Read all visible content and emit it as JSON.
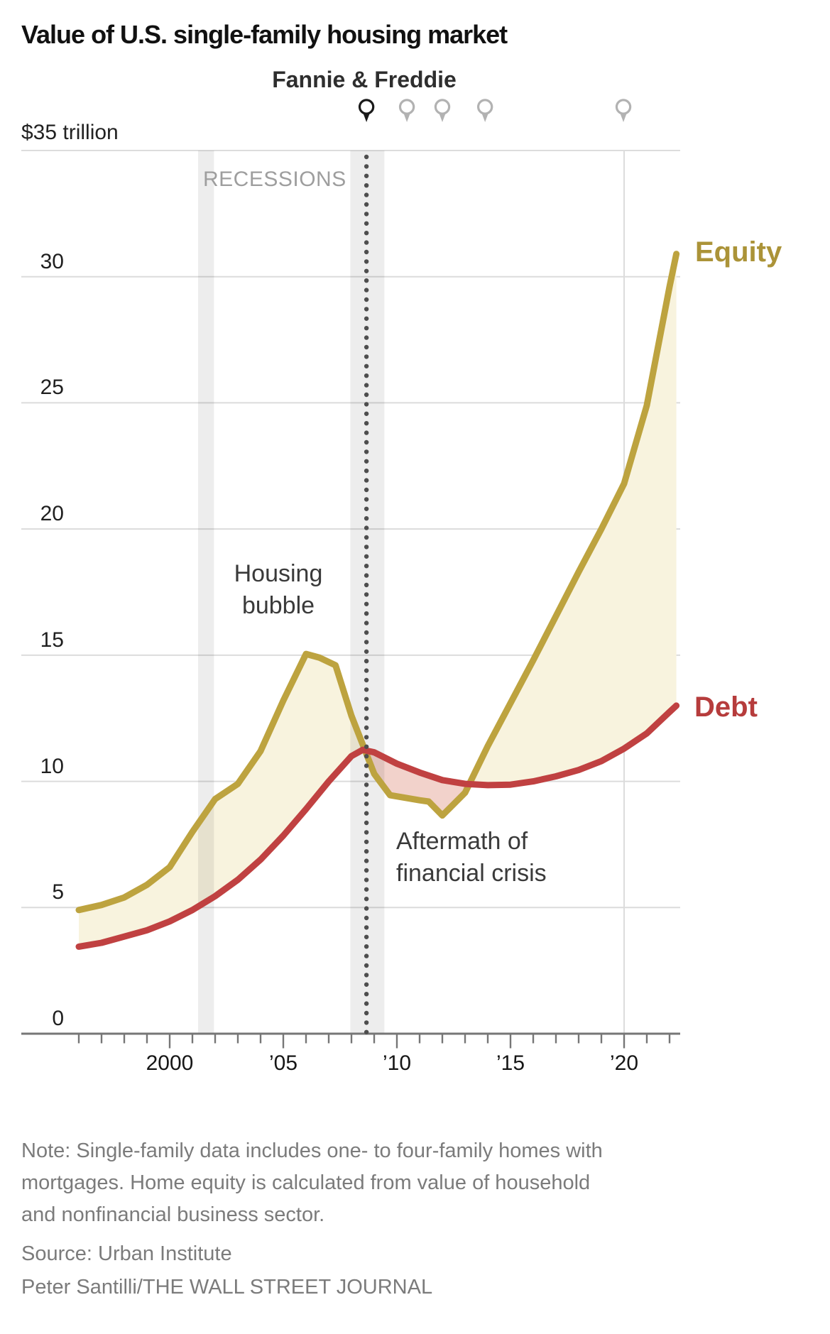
{
  "header": {
    "title": "Value of U.S. single-family housing market"
  },
  "chart": {
    "event_label": "Fannie & Freddie",
    "recessions_label": "RECESSIONS",
    "annotations": {
      "housing_bubble_line1": "Housing",
      "housing_bubble_line2": "bubble",
      "aftermath_line1": "Aftermath of",
      "aftermath_line2": "financial crisis"
    }
  },
  "chart_data": {
    "type": "line",
    "title": "Value of U.S. single-family housing market",
    "unit": "trillion USD",
    "legend_position": "right-of-line-ends",
    "grid": "horizontal",
    "y_axis": {
      "top_label": "$35 trillion",
      "ylim": [
        0,
        35
      ],
      "gridline_values": [
        35,
        30,
        25,
        20,
        15,
        10,
        5
      ],
      "tick_labels": [
        {
          "value": 30,
          "label": "30"
        },
        {
          "value": 25,
          "label": "25"
        },
        {
          "value": 20,
          "label": "20"
        },
        {
          "value": 15,
          "label": "15"
        },
        {
          "value": 10,
          "label": "10"
        },
        {
          "value": 5,
          "label": "5"
        },
        {
          "value": 0,
          "label": "0"
        }
      ]
    },
    "x_axis": {
      "xlim": [
        1995.95,
        2022.45
      ],
      "major_ticks": [
        {
          "x": 2000,
          "label": "2000"
        },
        {
          "x": 2005,
          "label": "’05"
        },
        {
          "x": 2010,
          "label": "’10"
        },
        {
          "x": 2015,
          "label": "’15"
        },
        {
          "x": 2020,
          "label": "’20"
        }
      ],
      "minor_tick_years": [
        1996,
        2022
      ],
      "year_gridlines": [
        2020
      ]
    },
    "recession_bands": [
      [
        2001.25,
        2001.95
      ],
      [
        2007.95,
        2009.45
      ]
    ],
    "event_line_x": 2008.66,
    "pins": {
      "event_pin_x": 2008.66,
      "secondary_pins_x": [
        2010.44,
        2012.0,
        2013.88,
        2019.97
      ]
    },
    "series": [
      {
        "name": "Equity",
        "color": "#bda33f",
        "label_color": "#ab9338",
        "points": [
          [
            1996,
            4.9
          ],
          [
            1997,
            5.1
          ],
          [
            1998,
            5.4
          ],
          [
            1999,
            5.9
          ],
          [
            2000,
            6.6
          ],
          [
            2001,
            8.0
          ],
          [
            2002,
            9.3
          ],
          [
            2003,
            9.9
          ],
          [
            2004,
            11.2
          ],
          [
            2005,
            13.2
          ],
          [
            2006,
            15.05
          ],
          [
            2006.6,
            14.9
          ],
          [
            2007.3,
            14.6
          ],
          [
            2008,
            12.6
          ],
          [
            2009,
            10.3
          ],
          [
            2009.7,
            9.45
          ],
          [
            2011,
            9.25
          ],
          [
            2011.4,
            9.2
          ],
          [
            2012,
            8.65
          ],
          [
            2013,
            9.55
          ],
          [
            2014,
            11.4
          ],
          [
            2015,
            13.1
          ],
          [
            2016,
            14.8
          ],
          [
            2017,
            16.55
          ],
          [
            2018,
            18.3
          ],
          [
            2019,
            20.0
          ],
          [
            2020,
            21.8
          ],
          [
            2021,
            24.9
          ],
          [
            2022,
            29.6
          ],
          [
            2022.3,
            30.9
          ]
        ]
      },
      {
        "name": "Debt",
        "color": "#c04141",
        "label_color": "#b63c3c",
        "points": [
          [
            1996,
            3.45
          ],
          [
            1997,
            3.6
          ],
          [
            1998,
            3.85
          ],
          [
            1999,
            4.1
          ],
          [
            2000,
            4.45
          ],
          [
            2001,
            4.9
          ],
          [
            2002,
            5.45
          ],
          [
            2003,
            6.1
          ],
          [
            2004,
            6.9
          ],
          [
            2005,
            7.85
          ],
          [
            2006,
            8.9
          ],
          [
            2007,
            10.0
          ],
          [
            2008,
            11.0
          ],
          [
            2008.5,
            11.25
          ],
          [
            2009,
            11.15
          ],
          [
            2010,
            10.7
          ],
          [
            2011,
            10.35
          ],
          [
            2012,
            10.05
          ],
          [
            2013,
            9.9
          ],
          [
            2014,
            9.85
          ],
          [
            2015,
            9.87
          ],
          [
            2016,
            10.0
          ],
          [
            2017,
            10.2
          ],
          [
            2018,
            10.45
          ],
          [
            2019,
            10.8
          ],
          [
            2020,
            11.3
          ],
          [
            2021,
            11.9
          ],
          [
            2022,
            12.75
          ],
          [
            2022.3,
            13.0
          ]
        ]
      }
    ],
    "between_fills": {
      "equity_above_color": "#f8f3de",
      "debt_above_color": "#f2d2cb"
    },
    "colors": {
      "recession_band": "rgba(0,0,0,0.07)",
      "gridline": "#dcdcdc",
      "axis": "#767676",
      "event_dotted_line": "#4e4e4e",
      "event_pin": "#1a1a1a",
      "secondary_pin": "#b2b2b2"
    }
  },
  "footer": {
    "note_line1": "Note: Single-family data includes one- to four-family homes with",
    "note_line2": "mortgages. Home equity is calculated from value of household",
    "note_line3": "and nonfinancial business sector.",
    "source": "Source: Urban Institute",
    "credit": "Peter Santilli/THE WALL STREET JOURNAL"
  }
}
